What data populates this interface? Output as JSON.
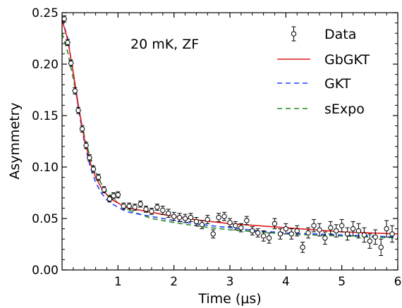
{
  "chart_data": {
    "type": "scatter",
    "annotation": "20 mK, ZF",
    "xlabel": "Time (μs)",
    "ylabel": "Asymmetry",
    "xlim": [
      0,
      6
    ],
    "ylim": [
      0,
      0.25
    ],
    "x_ticks": [
      1,
      2,
      3,
      4,
      5,
      6
    ],
    "x_tick_labels": [
      "1",
      "2",
      "3",
      "4",
      "5",
      "6"
    ],
    "y_ticks": [
      0,
      0.05,
      0.1,
      0.15,
      0.2,
      0.25
    ],
    "y_tick_labels": [
      "0.00",
      "0.05",
      "0.10",
      "0.15",
      "0.20",
      "0.25"
    ],
    "legend_position": "top-right",
    "legend": [
      {
        "label": "Data",
        "kind": "errorbar-marker",
        "color": "#000000"
      },
      {
        "label": "GbGKT",
        "kind": "solid",
        "color": "#e41a1c"
      },
      {
        "label": "GKT",
        "kind": "dashed",
        "color": "#1f3fff"
      },
      {
        "label": "sExpo",
        "kind": "dashed",
        "color": "#228b22"
      }
    ],
    "series": [
      {
        "name": "Data",
        "points": [
          [
            0.04,
            0.244,
            0.003
          ],
          [
            0.1,
            0.221,
            0.003
          ],
          [
            0.16,
            0.201,
            0.003
          ],
          [
            0.23,
            0.174,
            0.003
          ],
          [
            0.29,
            0.155,
            0.003
          ],
          [
            0.36,
            0.137,
            0.003
          ],
          [
            0.43,
            0.121,
            0.003
          ],
          [
            0.49,
            0.109,
            0.003
          ],
          [
            0.56,
            0.098,
            0.003
          ],
          [
            0.65,
            0.09,
            0.003
          ],
          [
            0.75,
            0.078,
            0.003
          ],
          [
            0.85,
            0.069,
            0.003
          ],
          [
            0.92,
            0.072,
            0.003
          ],
          [
            1.0,
            0.073,
            0.003
          ],
          [
            1.1,
            0.062,
            0.003
          ],
          [
            1.2,
            0.062,
            0.003
          ],
          [
            1.3,
            0.061,
            0.003
          ],
          [
            1.4,
            0.064,
            0.003
          ],
          [
            1.5,
            0.059,
            0.003
          ],
          [
            1.6,
            0.057,
            0.003
          ],
          [
            1.7,
            0.061,
            0.003
          ],
          [
            1.8,
            0.058,
            0.004
          ],
          [
            1.9,
            0.055,
            0.004
          ],
          [
            2.0,
            0.052,
            0.004
          ],
          [
            2.1,
            0.051,
            0.004
          ],
          [
            2.2,
            0.05,
            0.004
          ],
          [
            2.3,
            0.051,
            0.004
          ],
          [
            2.4,
            0.047,
            0.004
          ],
          [
            2.5,
            0.044,
            0.004
          ],
          [
            2.6,
            0.049,
            0.004
          ],
          [
            2.7,
            0.035,
            0.004
          ],
          [
            2.8,
            0.051,
            0.004
          ],
          [
            2.9,
            0.052,
            0.004
          ],
          [
            3.0,
            0.046,
            0.004
          ],
          [
            3.1,
            0.043,
            0.004
          ],
          [
            3.2,
            0.041,
            0.004
          ],
          [
            3.3,
            0.048,
            0.004
          ],
          [
            3.4,
            0.038,
            0.004
          ],
          [
            3.5,
            0.036,
            0.004
          ],
          [
            3.6,
            0.033,
            0.005
          ],
          [
            3.7,
            0.031,
            0.005
          ],
          [
            3.8,
            0.045,
            0.005
          ],
          [
            3.9,
            0.035,
            0.005
          ],
          [
            4.0,
            0.04,
            0.005
          ],
          [
            4.1,
            0.035,
            0.005
          ],
          [
            4.2,
            0.038,
            0.005
          ],
          [
            4.3,
            0.022,
            0.005
          ],
          [
            4.4,
            0.036,
            0.005
          ],
          [
            4.5,
            0.043,
            0.006
          ],
          [
            4.6,
            0.039,
            0.006
          ],
          [
            4.7,
            0.031,
            0.006
          ],
          [
            4.8,
            0.041,
            0.006
          ],
          [
            4.9,
            0.038,
            0.006
          ],
          [
            5.0,
            0.043,
            0.006
          ],
          [
            5.1,
            0.035,
            0.006
          ],
          [
            5.2,
            0.04,
            0.007
          ],
          [
            5.3,
            0.038,
            0.007
          ],
          [
            5.4,
            0.034,
            0.007
          ],
          [
            5.5,
            0.028,
            0.007
          ],
          [
            5.6,
            0.032,
            0.007
          ],
          [
            5.7,
            0.022,
            0.008
          ],
          [
            5.8,
            0.04,
            0.008
          ],
          [
            5.9,
            0.035,
            0.008
          ]
        ]
      },
      {
        "name": "GbGKT",
        "x": [
          0,
          0.1,
          0.2,
          0.3,
          0.4,
          0.5,
          0.6,
          0.7,
          0.8,
          0.9,
          1.0,
          1.1,
          1.2,
          1.4,
          1.6,
          1.8,
          2.0,
          2.5,
          3.0,
          3.5,
          4.0,
          4.5,
          5.0,
          5.5,
          6.0
        ],
        "y": [
          0.243,
          0.224,
          0.192,
          0.157,
          0.127,
          0.105,
          0.09,
          0.08,
          0.073,
          0.068,
          0.065,
          0.062,
          0.06,
          0.058,
          0.056,
          0.054,
          0.052,
          0.048,
          0.045,
          0.043,
          0.041,
          0.039,
          0.037,
          0.036,
          0.035
        ]
      },
      {
        "name": "GKT",
        "x": [
          0,
          0.1,
          0.2,
          0.3,
          0.4,
          0.5,
          0.6,
          0.7,
          0.8,
          0.9,
          1.0,
          1.1,
          1.2,
          1.4,
          1.6,
          1.8,
          2.0,
          2.5,
          3.0,
          3.5,
          4.0,
          4.5,
          5.0,
          5.5,
          6.0
        ],
        "y": [
          0.243,
          0.226,
          0.191,
          0.154,
          0.124,
          0.101,
          0.085,
          0.075,
          0.068,
          0.064,
          0.061,
          0.058,
          0.056,
          0.054,
          0.052,
          0.05,
          0.048,
          0.044,
          0.041,
          0.038,
          0.036,
          0.035,
          0.034,
          0.033,
          0.032
        ]
      },
      {
        "name": "sExpo",
        "x": [
          0,
          0.1,
          0.2,
          0.3,
          0.4,
          0.5,
          0.6,
          0.7,
          0.8,
          0.9,
          1.0,
          1.1,
          1.2,
          1.4,
          1.6,
          1.8,
          2.0,
          2.5,
          3.0,
          3.5,
          4.0,
          4.5,
          5.0,
          5.5,
          6.0
        ],
        "y": [
          0.23,
          0.212,
          0.186,
          0.156,
          0.13,
          0.11,
          0.095,
          0.084,
          0.076,
          0.07,
          0.065,
          0.061,
          0.058,
          0.054,
          0.05,
          0.048,
          0.046,
          0.042,
          0.039,
          0.037,
          0.035,
          0.034,
          0.033,
          0.032,
          0.031
        ]
      }
    ]
  }
}
